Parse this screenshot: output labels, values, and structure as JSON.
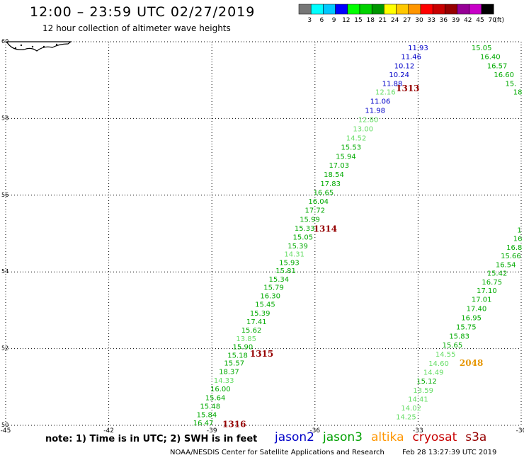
{
  "header": {
    "title": "12:00 – 23:59 UTC 02/27/2019",
    "subtitle": "12 hour collection of altimeter wave heights"
  },
  "color_scale": {
    "ticks": [
      "3",
      "6",
      "9",
      "12",
      "15",
      "18",
      "21",
      "24",
      "27",
      "30",
      "33",
      "36",
      "39",
      "42",
      "45",
      "70"
    ],
    "unit": "(ft)",
    "colors": [
      "#777777",
      "#00ffff",
      "#00c8ff",
      "#0000ff",
      "#00ff00",
      "#00d200",
      "#009600",
      "#ffff00",
      "#ffc800",
      "#ff9600",
      "#ff0000",
      "#c80000",
      "#960000",
      "#960096",
      "#c800c8",
      "#000000"
    ]
  },
  "chart_data": {
    "type": "scatter",
    "xlim": [
      -45,
      -30
    ],
    "ylim": [
      50,
      60
    ],
    "x_ticks": [
      "-45",
      "-42",
      "-39",
      "-36",
      "-33",
      "-30"
    ],
    "y_ticks": [
      "60",
      "58",
      "56",
      "54",
      "52",
      "50"
    ],
    "grid": true,
    "tracks": [
      {
        "color": "#0000c8",
        "points": [
          {
            "x": -33.0,
            "y": 59.85,
            "v": "11.93"
          },
          {
            "x": -33.2,
            "y": 59.62,
            "v": "11.46"
          },
          {
            "x": -33.4,
            "y": 59.38,
            "v": "10.12"
          },
          {
            "x": -33.55,
            "y": 59.15,
            "v": "10.24"
          },
          {
            "x": -33.75,
            "y": 58.92,
            "v": "11.88"
          }
        ]
      },
      {
        "color": "#66dd66",
        "points": [
          {
            "x": -33.95,
            "y": 58.7,
            "v": "12.16"
          }
        ]
      },
      {
        "color": "#0000c8",
        "points": [
          {
            "x": -34.1,
            "y": 58.46,
            "v": "11.06"
          },
          {
            "x": -34.25,
            "y": 58.22,
            "v": "11.98"
          }
        ]
      },
      {
        "color": "#66dd66",
        "points": [
          {
            "x": -34.45,
            "y": 57.98,
            "v": "12.80"
          },
          {
            "x": -34.6,
            "y": 57.74,
            "v": "13.00"
          },
          {
            "x": -34.8,
            "y": 57.5,
            "v": "14.52"
          }
        ]
      },
      {
        "color": "#00aa00",
        "points": [
          {
            "x": -34.95,
            "y": 57.26,
            "v": "15.53"
          },
          {
            "x": -35.1,
            "y": 57.02,
            "v": "15.94"
          },
          {
            "x": -35.3,
            "y": 56.79,
            "v": "17.03"
          },
          {
            "x": -35.45,
            "y": 56.55,
            "v": "18.54"
          },
          {
            "x": -35.55,
            "y": 56.31,
            "v": "17.83"
          },
          {
            "x": -35.75,
            "y": 56.08,
            "v": "16.65"
          },
          {
            "x": -35.9,
            "y": 55.85,
            "v": "16.04"
          },
          {
            "x": -36.0,
            "y": 55.62,
            "v": "17.72"
          },
          {
            "x": -36.15,
            "y": 55.38,
            "v": "15.99"
          },
          {
            "x": -36.3,
            "y": 55.15,
            "v": "15.33"
          },
          {
            "x": -36.35,
            "y": 54.92,
            "v": "15.05"
          },
          {
            "x": -36.5,
            "y": 54.69,
            "v": "15.39"
          }
        ]
      },
      {
        "color": "#66dd66",
        "points": [
          {
            "x": -36.6,
            "y": 54.47,
            "v": "14.31"
          }
        ]
      },
      {
        "color": "#00aa00",
        "points": [
          {
            "x": -36.75,
            "y": 54.25,
            "v": "15.93"
          },
          {
            "x": -36.85,
            "y": 54.04,
            "v": "15.81"
          },
          {
            "x": -37.05,
            "y": 53.82,
            "v": "15.34"
          },
          {
            "x": -37.2,
            "y": 53.61,
            "v": "15.79"
          },
          {
            "x": -37.3,
            "y": 53.39,
            "v": "16.30"
          },
          {
            "x": -37.45,
            "y": 53.16,
            "v": "15.45"
          },
          {
            "x": -37.6,
            "y": 52.93,
            "v": "15.39"
          },
          {
            "x": -37.7,
            "y": 52.71,
            "v": "17.41"
          },
          {
            "x": -37.85,
            "y": 52.49,
            "v": "15.62"
          }
        ]
      },
      {
        "color": "#66dd66",
        "points": [
          {
            "x": -38.0,
            "y": 52.27,
            "v": "13.85"
          }
        ]
      },
      {
        "color": "#00aa00",
        "points": [
          {
            "x": -38.1,
            "y": 52.06,
            "v": "15.90"
          },
          {
            "x": -38.25,
            "y": 51.84,
            "v": "15.18"
          },
          {
            "x": -38.35,
            "y": 51.63,
            "v": "15.57"
          },
          {
            "x": -38.5,
            "y": 51.41,
            "v": "18.37"
          }
        ]
      },
      {
        "color": "#66dd66",
        "points": [
          {
            "x": -38.65,
            "y": 51.18,
            "v": "14.33"
          }
        ]
      },
      {
        "color": "#00aa00",
        "points": [
          {
            "x": -38.75,
            "y": 50.96,
            "v": "16.00"
          },
          {
            "x": -38.9,
            "y": 50.73,
            "v": "15.64"
          },
          {
            "x": -39.05,
            "y": 50.51,
            "v": "15.48"
          },
          {
            "x": -39.15,
            "y": 50.29,
            "v": "15.84"
          },
          {
            "x": -39.25,
            "y": 50.07,
            "v": "16.47"
          }
        ]
      },
      {
        "color": "#00aa00",
        "points": [
          {
            "x": -31.15,
            "y": 59.85,
            "v": "15.05"
          },
          {
            "x": -30.9,
            "y": 59.62,
            "v": "16.40"
          },
          {
            "x": -30.7,
            "y": 59.38,
            "v": "16.57"
          },
          {
            "x": -30.5,
            "y": 59.15,
            "v": "16.60"
          },
          {
            "x": -30.3,
            "y": 58.92,
            "v": "15."
          },
          {
            "x": -30.1,
            "y": 58.7,
            "v": "18"
          }
        ]
      },
      {
        "color": "#00aa00",
        "points": [
          {
            "x": -30.05,
            "y": 55.1,
            "v": "1"
          },
          {
            "x": -30.1,
            "y": 54.88,
            "v": "16"
          },
          {
            "x": -30.2,
            "y": 54.65,
            "v": "16.8"
          },
          {
            "x": -30.3,
            "y": 54.43,
            "v": "15.66"
          },
          {
            "x": -30.45,
            "y": 54.2,
            "v": "16.54"
          },
          {
            "x": -30.7,
            "y": 53.98,
            "v": "15.42"
          },
          {
            "x": -30.85,
            "y": 53.75,
            "v": "16.75"
          },
          {
            "x": -31.0,
            "y": 53.52,
            "v": "17.10"
          },
          {
            "x": -31.15,
            "y": 53.29,
            "v": "17.01"
          },
          {
            "x": -31.3,
            "y": 53.05,
            "v": "17.40"
          },
          {
            "x": -31.45,
            "y": 52.81,
            "v": "16.95"
          },
          {
            "x": -31.6,
            "y": 52.57,
            "v": "15.75"
          },
          {
            "x": -31.8,
            "y": 52.33,
            "v": "15.83"
          },
          {
            "x": -32.0,
            "y": 52.1,
            "v": "15.65"
          }
        ]
      },
      {
        "color": "#66dd66",
        "points": [
          {
            "x": -32.2,
            "y": 51.86,
            "v": "14.55"
          },
          {
            "x": -32.4,
            "y": 51.62,
            "v": "14.60"
          },
          {
            "x": -32.55,
            "y": 51.39,
            "v": "14.49"
          }
        ]
      },
      {
        "color": "#00aa00",
        "points": [
          {
            "x": -32.75,
            "y": 51.16,
            "v": "15.12"
          }
        ]
      },
      {
        "color": "#66dd66",
        "points": [
          {
            "x": -32.85,
            "y": 50.92,
            "v": "13.59"
          },
          {
            "x": -33.0,
            "y": 50.69,
            "v": "14.41"
          },
          {
            "x": -33.2,
            "y": 50.46,
            "v": "14.02"
          },
          {
            "x": -33.35,
            "y": 50.23,
            "v": "14.25"
          }
        ]
      }
    ],
    "orbit_labels": [
      {
        "text": "1313",
        "x": -33.3,
        "y": 58.78,
        "color": "#960000"
      },
      {
        "text": "1314",
        "x": -35.7,
        "y": 55.12,
        "color": "#960000"
      },
      {
        "text": "1315",
        "x": -37.55,
        "y": 51.86,
        "color": "#960000"
      },
      {
        "text": "1316",
        "x": -38.35,
        "y": 50.03,
        "color": "#960000"
      },
      {
        "text": "2048",
        "x": -31.45,
        "y": 51.62,
        "color": "#e69600"
      }
    ]
  },
  "note": "note: 1) Time is in UTC; 2) SWH is in feet",
  "legend": [
    {
      "name": "jason2",
      "color": "#0000c8"
    },
    {
      "name": "jason3",
      "color": "#00a000"
    },
    {
      "name": "altika",
      "color": "#ff9600"
    },
    {
      "name": "cryosat",
      "color": "#c80000"
    },
    {
      "name": "s3a",
      "color": "#960000"
    }
  ],
  "footer": {
    "source": "NOAA/NESDIS Center for Satellite Applications and Research",
    "timestamp": "Feb 28 13:27:39 UTC 2019"
  }
}
